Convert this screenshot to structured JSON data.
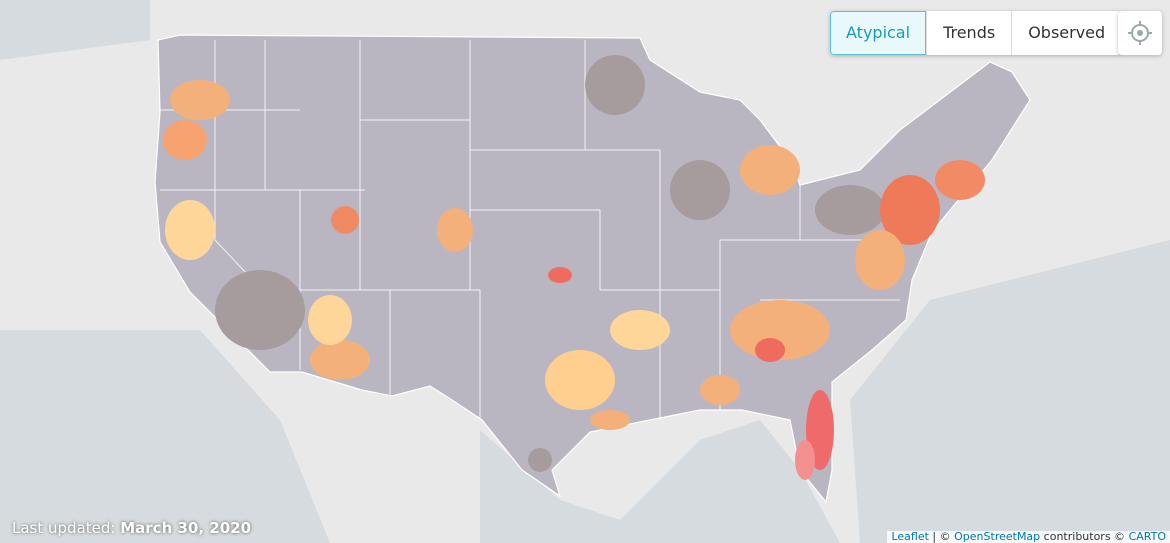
{
  "controls": {
    "tabs": [
      "Atypical",
      "Trends",
      "Observed"
    ],
    "active": 0
  },
  "footer": {
    "label": "Last updated:",
    "date": "March 30, 2020"
  },
  "attribution": {
    "leaflet": "Leaflet",
    "separator": "|",
    "copyright": "©",
    "osm": "OpenStreetMap",
    "contributors": "contributors ©",
    "carto": "CARTO"
  }
}
